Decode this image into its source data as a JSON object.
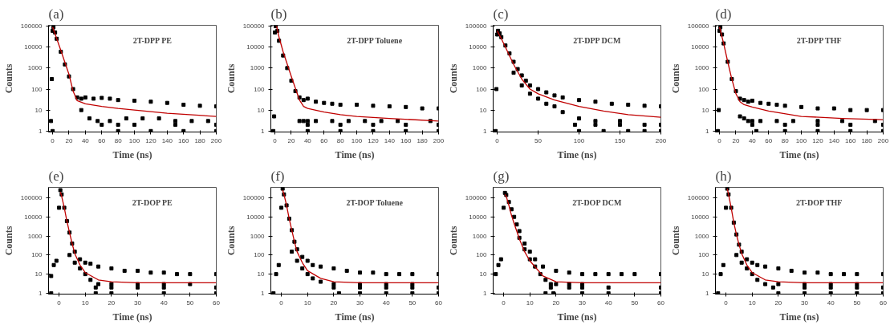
{
  "chart_data": [
    {
      "type": "scatter",
      "title": "(a)",
      "annotations": [
        "2T-DPP PE"
      ],
      "xlabel": "Time (ns)",
      "ylabel": "Counts",
      "log": true,
      "grid": false,
      "xlim": [
        -5,
        200
      ],
      "xticks": [
        0,
        20,
        40,
        60,
        80,
        100,
        120,
        140,
        160,
        180,
        200
      ],
      "ylim": [
        0.9,
        110000
      ],
      "yticks": [
        1,
        10,
        100,
        1000,
        10000,
        100000
      ],
      "series": [
        {
          "type": "scatter",
          "marker": "square",
          "color": "#000000",
          "x": [
            -2,
            -1,
            0,
            1,
            3,
            5,
            10,
            15,
            20,
            25,
            30,
            35,
            40,
            50,
            60,
            70,
            80,
            100,
            120,
            140,
            160,
            180,
            200,
            35,
            45,
            55,
            70,
            90,
            110,
            130,
            150,
            170,
            190,
            60,
            80,
            100,
            150,
            200,
            0,
            80,
            120,
            160,
            200
          ],
          "values": [
            3,
            300,
            60000,
            90000,
            50000,
            25000,
            6000,
            1500,
            400,
            100,
            40,
            35,
            40,
            35,
            38,
            35,
            30,
            28,
            25,
            22,
            18,
            16,
            15,
            10,
            4,
            3,
            3,
            4,
            4,
            4,
            3,
            3,
            3,
            2,
            2,
            2,
            2,
            2,
            1,
            1,
            1,
            1,
            1
          ]
        },
        {
          "type": "line",
          "marker": "none",
          "color": "#c00000",
          "x": [
            0,
            5,
            10,
            20,
            25,
            30,
            40,
            60,
            80,
            100,
            140,
            200
          ],
          "values": [
            90000,
            25000,
            7000,
            500,
            80,
            28,
            20,
            15,
            12,
            10,
            7,
            5
          ]
        }
      ]
    },
    {
      "type": "scatter",
      "title": "(b)",
      "annotations": [
        "2T-DPP Toluene"
      ],
      "xlabel": "Time (ns)",
      "ylabel": "Counts",
      "log": true,
      "grid": false,
      "xlim": [
        -5,
        200
      ],
      "xticks": [
        0,
        20,
        40,
        60,
        80,
        100,
        120,
        140,
        160,
        180,
        200
      ],
      "ylim": [
        0.9,
        110000
      ],
      "yticks": [
        1,
        10,
        100,
        1000,
        10000,
        100000
      ],
      "series": [
        {
          "type": "scatter",
          "marker": "square",
          "color": "#000000",
          "x": [
            -2,
            -1,
            0,
            1,
            3,
            5,
            10,
            15,
            20,
            25,
            30,
            35,
            40,
            50,
            60,
            70,
            80,
            100,
            120,
            140,
            160,
            180,
            200,
            30,
            35,
            40,
            50,
            70,
            90,
            110,
            130,
            150,
            190,
            40,
            80,
            120,
            160,
            200,
            40,
            80,
            120,
            160,
            200
          ],
          "values": [
            1,
            5,
            50000,
            100000,
            60000,
            20000,
            4000,
            1000,
            250,
            80,
            40,
            30,
            35,
            25,
            22,
            20,
            18,
            18,
            16,
            15,
            14,
            12,
            12,
            3,
            3,
            3,
            3,
            3,
            3,
            3,
            3,
            3,
            3,
            2,
            2,
            2,
            2,
            2,
            1,
            1,
            1,
            1,
            1
          ]
        },
        {
          "type": "line",
          "marker": "none",
          "color": "#c00000",
          "x": [
            2,
            5,
            10,
            20,
            30,
            35,
            40,
            60,
            80,
            100,
            140,
            200
          ],
          "values": [
            100000,
            30000,
            6000,
            400,
            30,
            15,
            12,
            8,
            6,
            5,
            4,
            3
          ]
        }
      ]
    },
    {
      "type": "scatter",
      "title": "(c)",
      "annotations": [
        "2T-DPP DCM"
      ],
      "xlabel": "Time (ns)",
      "ylabel": "Counts",
      "log": true,
      "grid": false,
      "xlim": [
        -5,
        200
      ],
      "xticks": [
        0,
        50,
        100,
        150,
        200
      ],
      "ylim": [
        0.9,
        110000
      ],
      "yticks": [
        1,
        10,
        100,
        1000,
        10000,
        100000
      ],
      "series": [
        {
          "type": "scatter",
          "marker": "square",
          "color": "#000000",
          "x": [
            -2,
            -1,
            0,
            1,
            3,
            5,
            10,
            15,
            20,
            25,
            30,
            35,
            40,
            50,
            60,
            70,
            80,
            100,
            120,
            140,
            160,
            180,
            200,
            20,
            30,
            40,
            50,
            60,
            70,
            80,
            100,
            120,
            150,
            95,
            120,
            150,
            180,
            200,
            100,
            130,
            160,
            180,
            200
          ],
          "values": [
            1,
            100,
            40000,
            60000,
            45000,
            30000,
            12000,
            5000,
            2000,
            900,
            450,
            250,
            150,
            100,
            70,
            50,
            40,
            30,
            25,
            20,
            18,
            16,
            15,
            600,
            150,
            60,
            35,
            20,
            15,
            8,
            4,
            3,
            3,
            2,
            2,
            2,
            2,
            2,
            1,
            1,
            1,
            1,
            1
          ]
        },
        {
          "type": "line",
          "marker": "none",
          "color": "#c00000",
          "x": [
            0,
            5,
            10,
            20,
            30,
            40,
            50,
            70,
            100,
            130,
            160,
            200
          ],
          "values": [
            60000,
            25000,
            10000,
            1500,
            300,
            100,
            60,
            30,
            15,
            9,
            6,
            4.5
          ]
        }
      ]
    },
    {
      "type": "scatter",
      "title": "(d)",
      "annotations": [
        "2T-DPP THF"
      ],
      "xlabel": "Time (ns)",
      "ylabel": "Counts",
      "log": true,
      "grid": false,
      "xlim": [
        -5,
        200
      ],
      "xticks": [
        0,
        20,
        40,
        60,
        80,
        100,
        120,
        140,
        160,
        180,
        200
      ],
      "ylim": [
        0.9,
        110000
      ],
      "yticks": [
        1,
        10,
        100,
        1000,
        10000,
        100000
      ],
      "series": [
        {
          "type": "scatter",
          "marker": "square",
          "color": "#000000",
          "x": [
            -2,
            -1,
            0,
            1,
            3,
            5,
            10,
            15,
            20,
            25,
            30,
            35,
            40,
            50,
            60,
            70,
            80,
            100,
            120,
            140,
            160,
            180,
            200,
            25,
            30,
            35,
            40,
            50,
            70,
            90,
            120,
            150,
            190,
            40,
            80,
            120,
            160,
            200,
            45,
            80,
            120,
            160,
            200
          ],
          "values": [
            1,
            10,
            60000,
            90000,
            40000,
            15000,
            2000,
            300,
            80,
            35,
            30,
            25,
            28,
            22,
            20,
            18,
            16,
            14,
            12,
            12,
            10,
            10,
            10,
            5,
            4,
            3,
            3,
            3,
            3,
            3,
            3,
            3,
            3,
            2,
            2,
            2,
            2,
            2,
            1,
            1,
            1,
            1,
            1
          ]
        },
        {
          "type": "line",
          "marker": "none",
          "color": "#c00000",
          "x": [
            0,
            5,
            10,
            15,
            20,
            25,
            30,
            40,
            60,
            100,
            150,
            200
          ],
          "values": [
            90000,
            15000,
            2000,
            300,
            60,
            25,
            18,
            14,
            9,
            5,
            4,
            3.5
          ]
        }
      ]
    },
    {
      "type": "scatter",
      "title": "(e)",
      "annotations": [
        "2T-DOP PE"
      ],
      "xlabel": "Time (ns)",
      "ylabel": "Counts",
      "log": true,
      "grid": false,
      "xlim": [
        -4,
        60
      ],
      "xticks": [
        0,
        10,
        20,
        30,
        40,
        50,
        60
      ],
      "ylim": [
        0.9,
        350000
      ],
      "yticks": [
        1,
        10,
        100,
        1000,
        10000,
        100000
      ],
      "series": [
        {
          "type": "scatter",
          "marker": "square",
          "color": "#000000",
          "x": [
            -3,
            -2,
            -1,
            0,
            0.5,
            1,
            2,
            3,
            4,
            5,
            6,
            8,
            10,
            12,
            15,
            20,
            25,
            30,
            35,
            40,
            45,
            50,
            60,
            4,
            6,
            8,
            10,
            12,
            15,
            20,
            30,
            40,
            50,
            14,
            20,
            30,
            40,
            60,
            -3,
            14,
            20,
            40,
            60
          ],
          "values": [
            8,
            30,
            50,
            30000,
            250000,
            150000,
            30000,
            6000,
            1500,
            400,
            150,
            60,
            40,
            35,
            25,
            20,
            15,
            15,
            12,
            12,
            10,
            10,
            10,
            100,
            40,
            20,
            10,
            5,
            3,
            3,
            3,
            3,
            3,
            2,
            2,
            2,
            2,
            2,
            1,
            1,
            1,
            1,
            1
          ]
        },
        {
          "type": "line",
          "marker": "none",
          "color": "#c00000",
          "x": [
            0.5,
            1,
            2,
            3,
            4,
            5,
            6,
            8,
            10,
            15,
            20,
            30,
            40,
            60
          ],
          "values": [
            200000,
            120000,
            30000,
            6000,
            1500,
            400,
            120,
            30,
            12,
            5,
            4,
            3.5,
            3.5,
            3.5
          ]
        }
      ]
    },
    {
      "type": "scatter",
      "title": "(f)",
      "annotations": [
        "2T-DOP Toluene"
      ],
      "xlabel": "Time (ns)",
      "ylabel": "Counts",
      "log": true,
      "grid": false,
      "xlim": [
        -4,
        60
      ],
      "xticks": [
        0,
        10,
        20,
        30,
        40,
        50,
        60
      ],
      "ylim": [
        0.9,
        350000
      ],
      "yticks": [
        1,
        10,
        100,
        1000,
        10000,
        100000
      ],
      "series": [
        {
          "type": "scatter",
          "marker": "square",
          "color": "#000000",
          "x": [
            -3,
            -2,
            -1,
            0,
            0.5,
            1,
            2,
            3,
            4,
            5,
            6,
            8,
            10,
            12,
            15,
            20,
            25,
            30,
            35,
            40,
            45,
            50,
            60,
            4,
            6,
            8,
            10,
            12,
            15,
            20,
            30,
            40,
            50,
            20,
            30,
            40,
            50,
            60,
            22,
            30,
            40,
            50,
            60
          ],
          "values": [
            1,
            10,
            30,
            30000,
            300000,
            150000,
            40000,
            8000,
            2000,
            500,
            200,
            80,
            50,
            30,
            25,
            20,
            15,
            12,
            12,
            10,
            10,
            10,
            10,
            150,
            50,
            20,
            10,
            6,
            4,
            3,
            3,
            3,
            3,
            2,
            2,
            2,
            2,
            2,
            1,
            1,
            1,
            1,
            1
          ]
        },
        {
          "type": "line",
          "marker": "none",
          "color": "#c00000",
          "x": [
            0.5,
            1,
            2,
            3,
            4,
            5,
            6,
            8,
            10,
            15,
            20,
            30,
            40,
            60
          ],
          "values": [
            250000,
            150000,
            40000,
            8000,
            2000,
            500,
            150,
            40,
            15,
            6,
            4,
            3.5,
            3.5,
            3.5
          ]
        }
      ]
    },
    {
      "type": "scatter",
      "title": "(g)",
      "annotations": [
        "2T-DOP DCM"
      ],
      "xlabel": "Time (ns)",
      "ylabel": "Counts",
      "log": true,
      "grid": false,
      "xlim": [
        -4,
        60
      ],
      "xticks": [
        0,
        10,
        20,
        30,
        40,
        50,
        60
      ],
      "ylim": [
        0.9,
        350000
      ],
      "yticks": [
        1,
        10,
        100,
        1000,
        10000,
        100000
      ],
      "series": [
        {
          "type": "scatter",
          "marker": "square",
          "color": "#000000",
          "x": [
            -3,
            -2,
            -1,
            0,
            0.5,
            1,
            2,
            3,
            4,
            5,
            6,
            8,
            10,
            12,
            15,
            20,
            25,
            30,
            35,
            40,
            45,
            50,
            60,
            6,
            8,
            10,
            12,
            14,
            16,
            18,
            20,
            25,
            30,
            18,
            25,
            30,
            40,
            60,
            16,
            19,
            30,
            40,
            60
          ],
          "values": [
            10,
            30,
            60,
            30000,
            180000,
            140000,
            60000,
            25000,
            10000,
            4000,
            1800,
            400,
            150,
            60,
            25,
            15,
            12,
            10,
            10,
            10,
            10,
            10,
            10,
            800,
            200,
            60,
            25,
            10,
            5,
            3,
            3,
            3,
            3,
            2,
            2,
            2,
            2,
            2,
            1,
            1,
            1,
            1,
            1
          ]
        },
        {
          "type": "line",
          "marker": "none",
          "color": "#c00000",
          "x": [
            0.5,
            1,
            2,
            3,
            4,
            5,
            6,
            8,
            10,
            15,
            20,
            30,
            40,
            60
          ],
          "values": [
            150000,
            120000,
            40000,
            12000,
            4500,
            1800,
            700,
            150,
            50,
            8,
            4,
            3.5,
            3.5,
            3.5
          ]
        }
      ]
    },
    {
      "type": "scatter",
      "title": "(h)",
      "annotations": [
        "2T-DOP THF"
      ],
      "xlabel": "Time (ns)",
      "ylabel": "Counts",
      "log": true,
      "grid": false,
      "xlim": [
        -4,
        60
      ],
      "xticks": [
        0,
        10,
        20,
        30,
        40,
        50,
        60
      ],
      "ylim": [
        0.9,
        350000
      ],
      "yticks": [
        1,
        10,
        100,
        1000,
        10000,
        100000
      ],
      "series": [
        {
          "type": "scatter",
          "marker": "square",
          "color": "#000000",
          "x": [
            -3,
            -2,
            -1,
            0,
            0.5,
            1,
            2,
            3,
            4,
            5,
            6,
            8,
            10,
            12,
            15,
            20,
            25,
            30,
            35,
            40,
            45,
            50,
            60,
            4,
            6,
            8,
            10,
            12,
            15,
            20,
            30,
            40,
            50,
            18,
            30,
            40,
            50,
            60,
            20,
            30,
            40,
            50,
            60
          ],
          "values": [
            1,
            10,
            30,
            30000,
            300000,
            150000,
            30000,
            5000,
            1200,
            350,
            150,
            60,
            40,
            30,
            25,
            20,
            15,
            12,
            12,
            10,
            10,
            10,
            10,
            100,
            40,
            20,
            10,
            5,
            3,
            3,
            3,
            3,
            3,
            2,
            2,
            2,
            2,
            2,
            1,
            1,
            1,
            1,
            1
          ]
        },
        {
          "type": "line",
          "marker": "none",
          "color": "#c00000",
          "x": [
            0.5,
            1,
            2,
            3,
            4,
            5,
            6,
            8,
            10,
            15,
            20,
            30,
            40,
            60
          ],
          "values": [
            300000,
            150000,
            30000,
            5000,
            1200,
            350,
            120,
            30,
            12,
            5,
            4,
            3.5,
            3.5,
            3.5
          ]
        }
      ]
    }
  ]
}
